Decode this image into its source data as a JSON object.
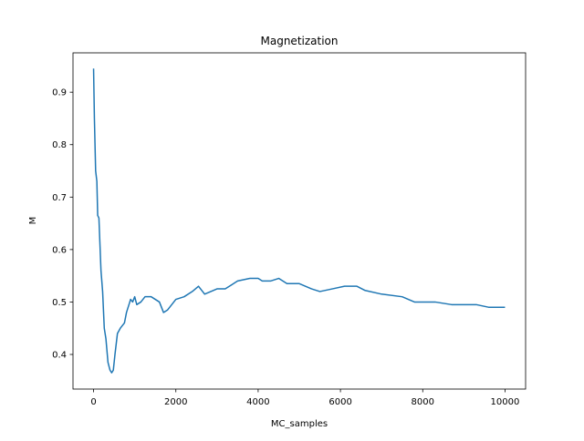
{
  "chart_data": {
    "type": "line",
    "title": "Magnetization",
    "x_label": "MC_samples",
    "y_label": "M",
    "x": [
      0,
      20,
      50,
      80,
      100,
      130,
      150,
      180,
      220,
      260,
      300,
      350,
      400,
      440,
      480,
      520,
      580,
      650,
      750,
      800,
      900,
      950,
      1000,
      1050,
      1150,
      1250,
      1400,
      1500,
      1600,
      1700,
      1800,
      2000,
      2200,
      2400,
      2550,
      2700,
      2850,
      3000,
      3200,
      3500,
      3800,
      4000,
      4100,
      4300,
      4500,
      4700,
      5000,
      5300,
      5500,
      5800,
      6100,
      6400,
      6600,
      7000,
      7500,
      7800,
      8300,
      8700,
      9000,
      9300,
      9600,
      9800,
      10000
    ],
    "series": [
      {
        "name": "M",
        "color": "#1f77b4",
        "values": [
          0.945,
          0.85,
          0.75,
          0.73,
          0.665,
          0.66,
          0.62,
          0.56,
          0.52,
          0.45,
          0.43,
          0.385,
          0.37,
          0.365,
          0.37,
          0.4,
          0.44,
          0.45,
          0.46,
          0.48,
          0.505,
          0.5,
          0.51,
          0.495,
          0.5,
          0.51,
          0.51,
          0.505,
          0.5,
          0.48,
          0.485,
          0.505,
          0.51,
          0.52,
          0.53,
          0.515,
          0.52,
          0.525,
          0.525,
          0.54,
          0.545,
          0.545,
          0.54,
          0.54,
          0.545,
          0.535,
          0.535,
          0.525,
          0.52,
          0.525,
          0.53,
          0.53,
          0.522,
          0.515,
          0.51,
          0.5,
          0.5,
          0.495,
          0.495,
          0.495,
          0.49,
          0.49,
          0.49
        ]
      }
    ],
    "xlim": [
      -500,
      10500
    ],
    "xticks": [
      0,
      2000,
      4000,
      6000,
      8000,
      10000
    ],
    "ylim": [
      0.334,
      0.975
    ],
    "yticks": [
      0.4,
      0.5,
      0.6,
      0.7,
      0.8,
      0.9
    ],
    "grid": false
  }
}
